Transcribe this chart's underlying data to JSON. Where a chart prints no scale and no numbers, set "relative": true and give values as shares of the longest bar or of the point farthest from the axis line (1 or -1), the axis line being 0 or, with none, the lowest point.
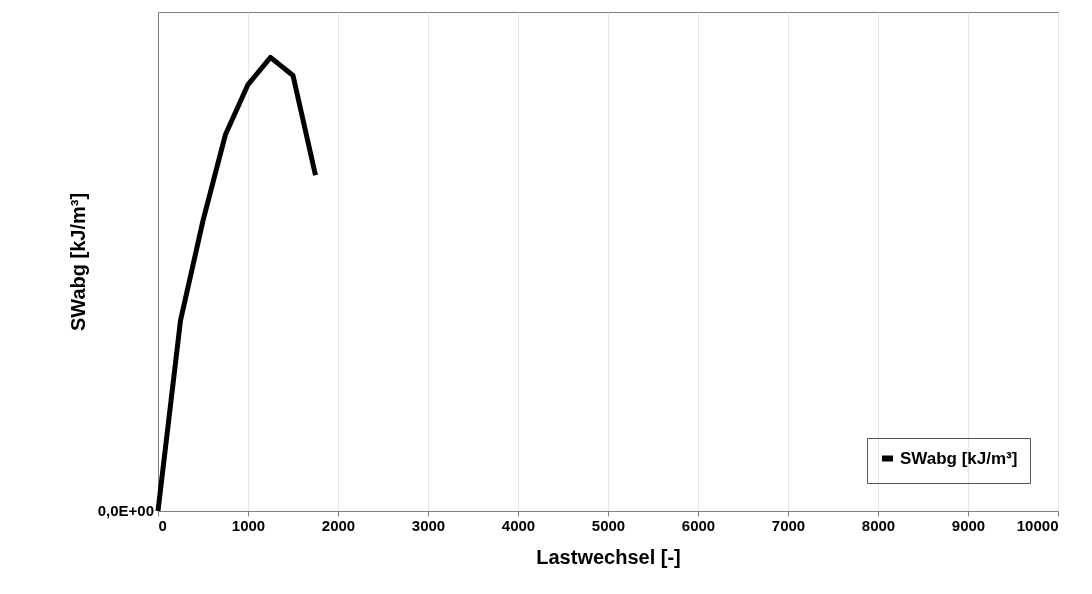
{
  "chart_data": {
    "type": "line",
    "xlabel": "Lastwechsel [-]",
    "ylabel": "SWabg [kJ/m³]",
    "relative": true,
    "x": [
      0,
      250,
      500,
      750,
      1000,
      1250,
      1500,
      1750
    ],
    "series": [
      {
        "name": "SWabg [kJ/m³]",
        "color": "#000000",
        "values": [
          0,
          0.42,
          0.64,
          0.83,
          0.94,
          1,
          0.96,
          0.74
        ]
      }
    ],
    "xlim": [
      0,
      10000
    ],
    "xticks": [
      0,
      1000,
      2000,
      3000,
      4000,
      5000,
      6000,
      7000,
      8000,
      9000,
      10000
    ],
    "grid": "x",
    "legend": "bottom right",
    "marker": "none",
    "line_style": "solid",
    "annotations": [
      "0,0E+00"
    ]
  }
}
